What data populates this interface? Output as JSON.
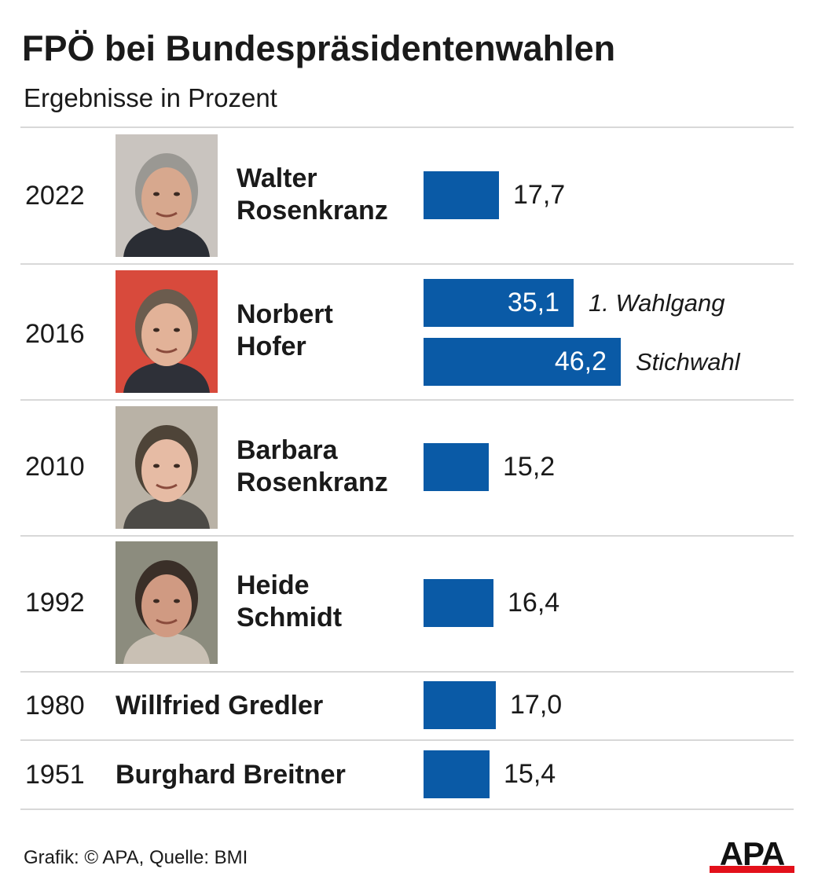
{
  "header": {
    "title": "FPÖ bei Bundespräsidentenwahlen",
    "subtitle": "Ergebnisse in Prozent"
  },
  "chart_data": {
    "type": "bar",
    "orientation": "horizontal",
    "title": "FPÖ bei Bundespräsidentenwahlen",
    "subtitle": "Ergebnisse in Prozent",
    "bar_color": "#0a5aa6",
    "rows": [
      {
        "year": "2022",
        "name_line1": "Walter",
        "name_line2": "Rosenkranz",
        "has_photo": true,
        "bars": [
          {
            "value": 17.7,
            "label": "17,7",
            "round": ""
          }
        ]
      },
      {
        "year": "2016",
        "name_line1": "Norbert",
        "name_line2": "Hofer",
        "has_photo": true,
        "bars": [
          {
            "value": 35.1,
            "label": "35,1",
            "round": "1. Wahlgang"
          },
          {
            "value": 46.2,
            "label": "46,2",
            "round": "Stichwahl"
          }
        ]
      },
      {
        "year": "2010",
        "name_line1": "Barbara",
        "name_line2": "Rosenkranz",
        "has_photo": true,
        "bars": [
          {
            "value": 15.2,
            "label": "15,2",
            "round": ""
          }
        ]
      },
      {
        "year": "1992",
        "name_line1": "Heide",
        "name_line2": "Schmidt",
        "has_photo": true,
        "bars": [
          {
            "value": 16.4,
            "label": "16,4",
            "round": ""
          }
        ]
      },
      {
        "year": "1980",
        "name_line1": "Willfried Gredler",
        "name_line2": "",
        "has_photo": false,
        "bars": [
          {
            "value": 17.0,
            "label": "17,0",
            "round": ""
          }
        ]
      },
      {
        "year": "1951",
        "name_line1": "Burghard Breitner",
        "name_line2": "",
        "has_photo": false,
        "bars": [
          {
            "value": 15.4,
            "label": "15,4",
            "round": ""
          }
        ]
      }
    ]
  },
  "footer": {
    "source": "Grafik: © APA, Quelle: BMI",
    "logo_text": "APA",
    "logo_stripe_color": "#e3101a"
  }
}
